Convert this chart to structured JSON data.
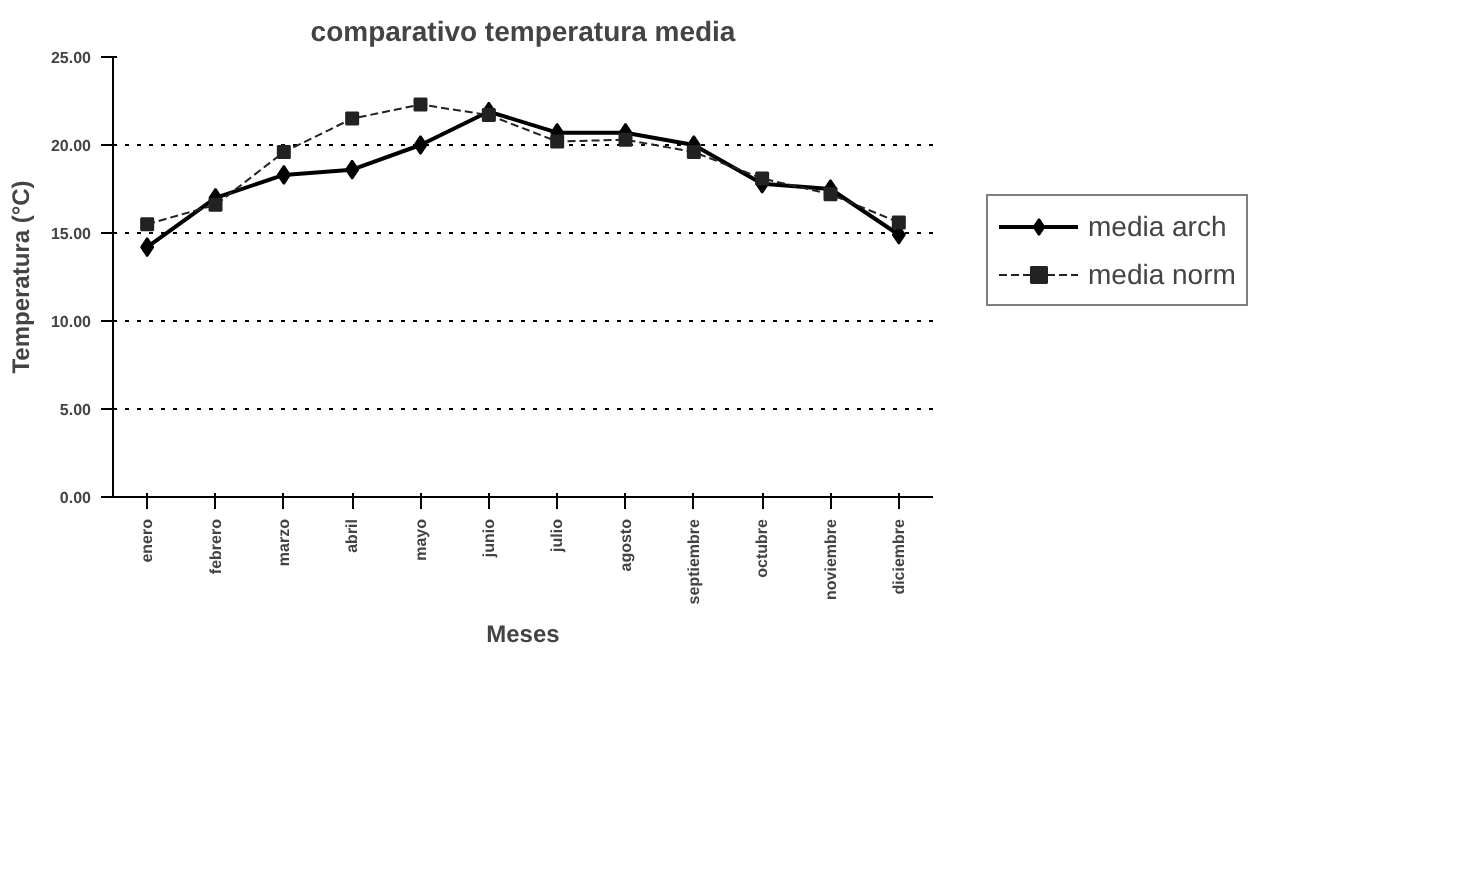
{
  "chart_data": {
    "type": "line",
    "title": "comparativo temperatura media",
    "xlabel": "Meses",
    "ylabel": "Temperatura (°C)",
    "categories": [
      "enero",
      "febrero",
      "marzo",
      "abril",
      "mayo",
      "junio",
      "julio",
      "agosto",
      "septiembre",
      "octubre",
      "noviembre",
      "diciembre"
    ],
    "series": [
      {
        "name": "media arch",
        "color": "#000000",
        "marker": "diamond",
        "line_style": "solid",
        "values": [
          14.2,
          17.0,
          18.3,
          18.6,
          20.0,
          21.9,
          20.7,
          20.7,
          20.0,
          17.8,
          17.5,
          14.9
        ]
      },
      {
        "name": "media norm",
        "color": "#222222",
        "marker": "square",
        "line_style": "dashed",
        "values": [
          15.5,
          16.6,
          19.6,
          21.5,
          22.3,
          21.7,
          20.2,
          20.3,
          19.6,
          18.1,
          17.2,
          15.6
        ]
      }
    ],
    "ylim": [
      0,
      25
    ],
    "yticks": [
      {
        "value": 0,
        "label": "0.00"
      },
      {
        "value": 5,
        "label": "5.00"
      },
      {
        "value": 10,
        "label": "10.00"
      },
      {
        "value": 15,
        "label": "15.00"
      },
      {
        "value": 20,
        "label": "20.00"
      },
      {
        "value": 25,
        "label": "25.00"
      }
    ],
    "grid": "y",
    "legend": "right"
  }
}
